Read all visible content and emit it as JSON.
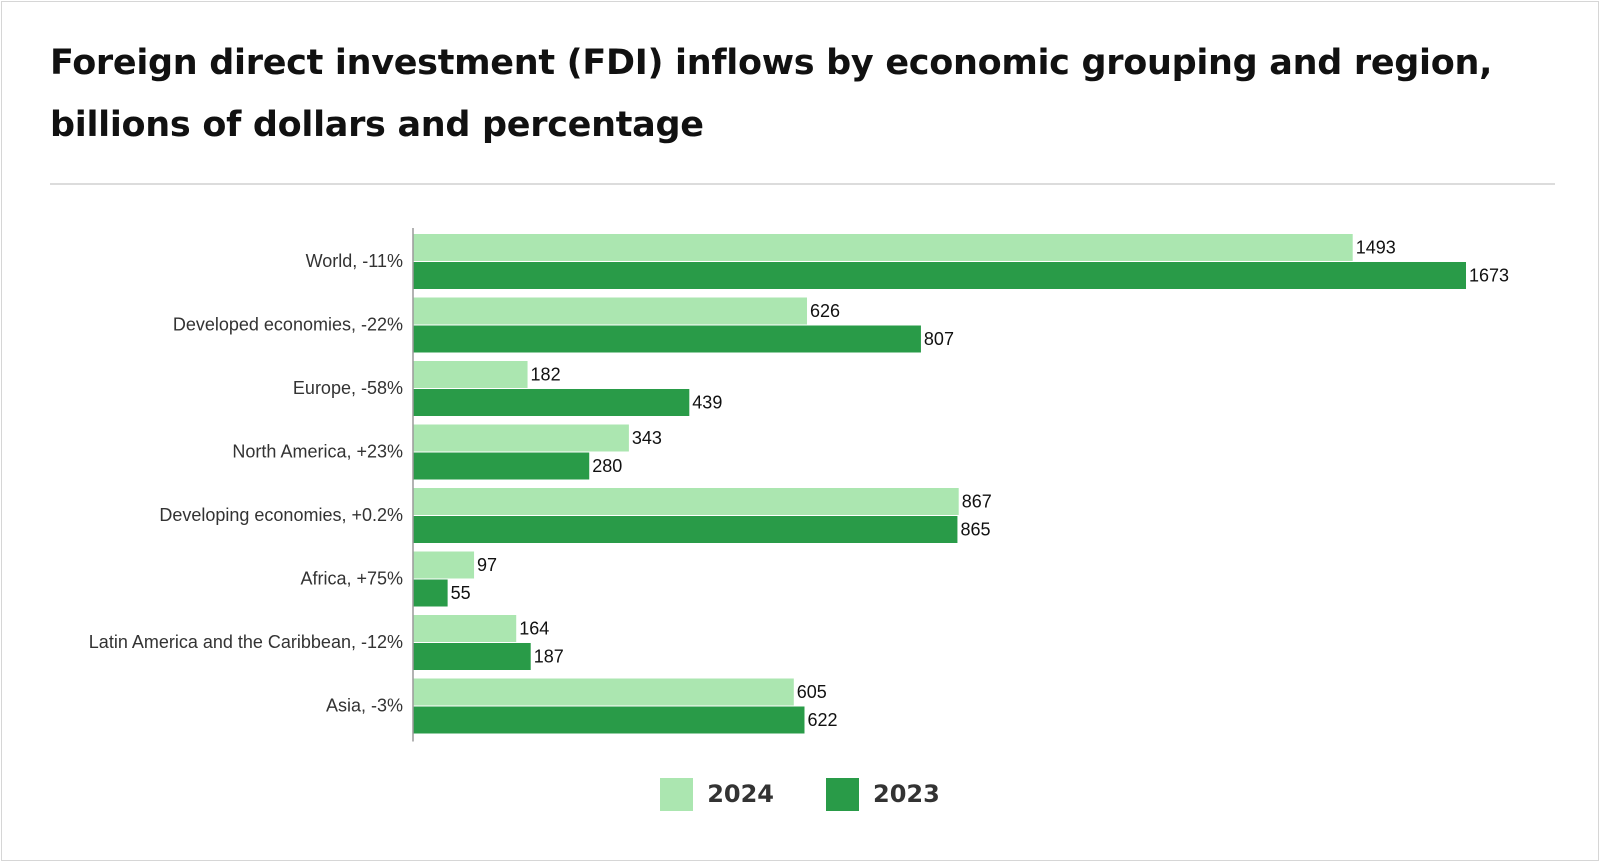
{
  "title": "Foreign direct investment (FDI) inflows by economic grouping and region, billions of dollars and percentage",
  "colors": {
    "series_2024": "#abe6b0",
    "series_2023": "#299b48",
    "axis": "#9a9a9a"
  },
  "chart_data": {
    "type": "bar",
    "orientation": "horizontal",
    "categories": [
      "World, -11%",
      "Developed economies, -22%",
      "Europe, -58%",
      "North America, +23%",
      "Developing economies, +0.2%",
      "Africa, +75%",
      "Latin America and the Caribbean, -12%",
      "Asia, -3%"
    ],
    "series": [
      {
        "name": "2024",
        "values": [
          1493,
          626,
          182,
          343,
          867,
          97,
          164,
          605
        ]
      },
      {
        "name": "2023",
        "values": [
          1673,
          807,
          439,
          280,
          865,
          55,
          187,
          622
        ]
      }
    ],
    "xlim": [
      0,
      1673
    ],
    "data_labels": true,
    "grid": false,
    "legend_position": "bottom-center"
  }
}
